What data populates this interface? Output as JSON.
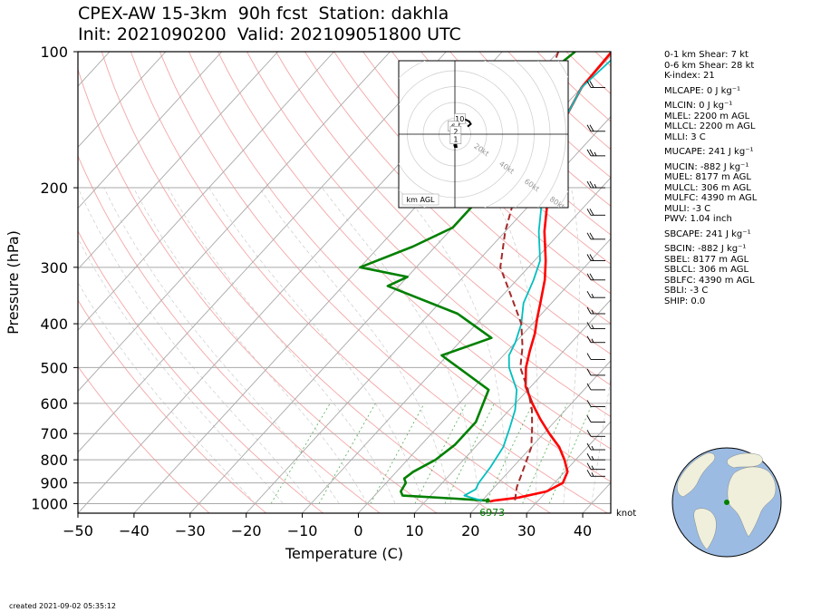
{
  "title_line1": "CPEX-AW 15-3km  90h fcst  Station: dakhla",
  "title_line2": "Init: 2021090200  Valid: 202109051800 UTC",
  "created": "created 2021-09-02 05:35:12",
  "indices": [
    "0-1 km Shear: 7 kt",
    "0-6 km Shear: 28 kt",
    "K-index: 21",
    "MLCAPE: 0 J kg⁻¹",
    "MLCIN: 0 J kg⁻¹",
    "MLEL: 2200 m AGL",
    "MLLCL: 2200 m AGL",
    "MLLI: 3 C",
    "MUCAPE: 241 J kg⁻¹",
    "MUCIN: -882 J kg⁻¹",
    "MUEL: 8177 m AGL",
    "MULCL: 306 m AGL",
    "MULFC: 4390 m AGL",
    "MULI: -3 C",
    "PWV: 1.04 inch",
    "SBCAPE: 241 J kg⁻¹",
    "SBCIN: -882 J kg⁻¹",
    "SBEL: 8177 m AGL",
    "SBLCL: 306 m AGL",
    "SBLFC: 4390 m AGL",
    "SBLI: -3 C",
    "SHIP: 0.0"
  ],
  "colors": {
    "temperature": "#ff0000",
    "dewpoint": "#008000",
    "wetbulb": "#00bfbf",
    "parcel": "#a52a2a",
    "isotherm": "#a9a9a9",
    "isobar": "#a9a9a9",
    "dry_adiabat": "#f4a6a6",
    "mixing_ratio": "#4caf50"
  },
  "chart_data": [
    {
      "type": "line",
      "subtype": "skew-T log-p",
      "xlabel": "Temperature (C)",
      "ylabel": "Pressure (hPa)",
      "xlim": [
        -50,
        45
      ],
      "ylim": [
        1050,
        100
      ],
      "x_ticks": [
        -50,
        -40,
        -30,
        -20,
        -10,
        0,
        10,
        20,
        30,
        40
      ],
      "y_ticks": [
        100,
        200,
        300,
        400,
        500,
        600,
        700,
        800,
        900,
        1000
      ],
      "y_scale": "log",
      "grid": true,
      "surface_label": "6973",
      "series": [
        {
          "key": "temperature",
          "points": [
            [
              -30.5,
              100
            ],
            [
              -30,
              120
            ],
            [
              -27,
              150
            ],
            [
              -22,
              180
            ],
            [
              -18,
              210
            ],
            [
              -13,
              250
            ],
            [
              -8,
              290
            ],
            [
              -5,
              320
            ],
            [
              -2,
              360
            ],
            [
              0,
              390
            ],
            [
              2,
              420
            ],
            [
              4,
              460
            ],
            [
              6,
              500
            ],
            [
              9,
              550
            ],
            [
              13,
              600
            ],
            [
              17,
              650
            ],
            [
              21,
              700
            ],
            [
              25,
              750
            ],
            [
              28,
              800
            ],
            [
              30.5,
              850
            ],
            [
              31.5,
              900
            ],
            [
              30,
              940
            ],
            [
              26,
              970
            ],
            [
              22,
              985
            ],
            [
              21.5,
              990
            ]
          ]
        },
        {
          "key": "dewpoint",
          "points": [
            [
              -37,
              100
            ],
            [
              -40,
              130
            ],
            [
              -39,
              150
            ],
            [
              -36,
              170
            ],
            [
              -35,
              190
            ],
            [
              -30,
              215
            ],
            [
              -30,
              245
            ],
            [
              -34,
              270
            ],
            [
              -40,
              300
            ],
            [
              -30,
              315
            ],
            [
              -32,
              330
            ],
            [
              -15,
              380
            ],
            [
              -5,
              430
            ],
            [
              -11,
              470
            ],
            [
              3,
              560
            ],
            [
              6,
              660
            ],
            [
              6,
              740
            ],
            [
              5,
              800
            ],
            [
              3,
              850
            ],
            [
              2.5,
              880
            ],
            [
              3.5,
              900
            ],
            [
              4,
              940
            ],
            [
              5,
              960
            ],
            [
              15,
              975
            ],
            [
              21,
              985
            ]
          ]
        },
        {
          "key": "wetbulb",
          "points": [
            [
              -29,
              100
            ],
            [
              -30,
              120
            ],
            [
              -27,
              150
            ],
            [
              -23,
              180
            ],
            [
              -19,
              210
            ],
            [
              -14,
              250
            ],
            [
              -9,
              290
            ],
            [
              -7,
              320
            ],
            [
              -5,
              360
            ],
            [
              -2,
              400
            ],
            [
              0,
              440
            ],
            [
              1,
              470
            ],
            [
              3,
              500
            ],
            [
              8,
              560
            ],
            [
              11,
              620
            ],
            [
              13,
              680
            ],
            [
              15,
              750
            ],
            [
              16,
              830
            ],
            [
              16.5,
              900
            ],
            [
              17,
              930
            ],
            [
              16,
              960
            ],
            [
              20,
              985
            ]
          ]
        },
        {
          "key": "parcel",
          "points": [
            [
              -40,
              100
            ],
            [
              -35,
              130
            ],
            [
              -30,
              160
            ],
            [
              -25,
              200
            ],
            [
              -20,
              250
            ],
            [
              -15,
              300
            ],
            [
              -8,
              350
            ],
            [
              -2,
              400
            ],
            [
              2,
              450
            ],
            [
              5,
              500
            ],
            [
              10,
              560
            ],
            [
              14,
              620
            ],
            [
              17,
              680
            ],
            [
              20,
              750
            ],
            [
              22,
              830
            ],
            [
              24,
              920
            ],
            [
              26,
              990
            ]
          ]
        }
      ]
    },
    {
      "type": "scatter",
      "subtype": "hodograph",
      "caption": "km AGL",
      "ring_labels": [
        "20kt",
        "40kt",
        "60kt",
        "80kt"
      ],
      "point_labels": [
        {
          "text": "10",
          "u": 3,
          "v": 6
        },
        {
          "text": "6",
          "u": -1,
          "v": 3
        },
        {
          "text": "2",
          "u": 0.5,
          "v": 1
        },
        {
          "text": "1",
          "u": 0.5,
          "v": -2
        }
      ],
      "trace": [
        [
          -0.5,
          -4
        ],
        [
          0,
          -5
        ],
        [
          1,
          -5
        ],
        [
          0.5,
          -3
        ],
        [
          0.5,
          -1
        ],
        [
          0.5,
          1
        ],
        [
          0,
          3
        ],
        [
          1,
          4
        ],
        [
          2,
          3
        ],
        [
          3,
          5
        ],
        [
          6,
          6
        ],
        [
          9,
          5
        ],
        [
          10,
          4
        ],
        [
          8,
          3
        ]
      ]
    },
    {
      "type": "barbs",
      "units": "knot",
      "units_label": "knot",
      "pressure_levels": [
        120,
        150,
        170,
        200,
        230,
        260,
        290,
        320,
        350,
        380,
        410,
        440,
        480,
        520,
        560,
        610,
        660,
        710,
        760,
        800,
        840,
        870
      ],
      "speeds_kt": [
        20,
        20,
        25,
        25,
        20,
        20,
        20,
        20,
        15,
        15,
        15,
        15,
        10,
        10,
        10,
        10,
        10,
        10,
        15,
        15,
        15,
        15
      ]
    }
  ]
}
